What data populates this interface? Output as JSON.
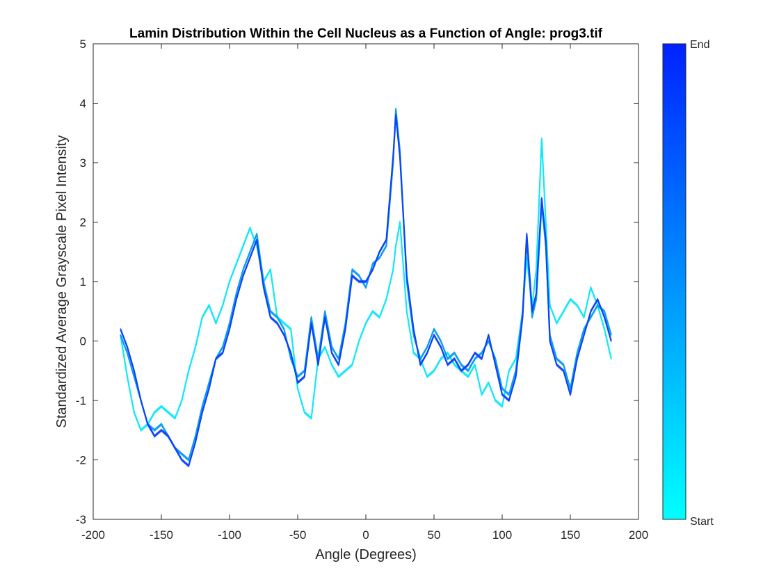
{
  "chart_data": {
    "type": "line",
    "title": "Lamin Distribution Within the Cell Nucleus as a Function of Angle: prog3.tif",
    "xlabel": "Angle (Degrees)",
    "ylabel": "Standardized Average Grayscale Pixel Intensity",
    "xlim": [
      -200,
      200
    ],
    "ylim": [
      -3,
      5
    ],
    "xticks": [
      -200,
      -150,
      -100,
      -50,
      0,
      50,
      100,
      150,
      200
    ],
    "yticks": [
      -3,
      -2,
      -1,
      0,
      1,
      2,
      3,
      4,
      5
    ],
    "xtick_labels": [
      "-200",
      "-150",
      "-100",
      "-50",
      "0",
      "50",
      "100",
      "150",
      "200"
    ],
    "ytick_labels": [
      "-3",
      "-2",
      "-1",
      "0",
      "1",
      "2",
      "3",
      "4",
      "5"
    ],
    "grid": false,
    "colorbar": {
      "labels": {
        "start": "Start",
        "end": "End"
      },
      "color_start": "#00FFFF",
      "color_end": "#0022FF"
    },
    "series": [
      {
        "color": "#10E8F8",
        "x": [
          -180,
          -175,
          -170,
          -165,
          -160,
          -155,
          -150,
          -145,
          -140,
          -135,
          -130,
          -125,
          -120,
          -115,
          -110,
          -105,
          -100,
          -95,
          -90,
          -85,
          -80,
          -75,
          -70,
          -65,
          -60,
          -55,
          -50,
          -45,
          -40,
          -35,
          -30,
          -25,
          -20,
          -15,
          -10,
          -5,
          0,
          5,
          10,
          15,
          20,
          22,
          25,
          30,
          35,
          40,
          45,
          50,
          55,
          60,
          65,
          70,
          75,
          80,
          85,
          90,
          95,
          100,
          105,
          110,
          115,
          118,
          122,
          125,
          129,
          132,
          135,
          140,
          145,
          150,
          155,
          160,
          165,
          170,
          175,
          180
        ],
        "y": [
          0.1,
          -0.6,
          -1.2,
          -1.5,
          -1.4,
          -1.2,
          -1.1,
          -1.2,
          -1.3,
          -1.0,
          -0.5,
          -0.1,
          0.4,
          0.6,
          0.3,
          0.6,
          1.0,
          1.3,
          1.6,
          1.9,
          1.6,
          1.0,
          1.2,
          0.4,
          0.3,
          0.2,
          -0.8,
          -1.2,
          -1.3,
          -0.3,
          -0.1,
          -0.4,
          -0.6,
          -0.5,
          -0.4,
          0.0,
          0.3,
          0.5,
          0.4,
          0.7,
          1.2,
          1.6,
          2.0,
          0.5,
          -0.2,
          -0.3,
          -0.6,
          -0.5,
          -0.3,
          -0.2,
          -0.4,
          -0.5,
          -0.6,
          -0.4,
          -0.9,
          -0.7,
          -1.0,
          -1.1,
          -0.5,
          -0.3,
          0.5,
          1.4,
          0.6,
          1.2,
          3.4,
          2.0,
          0.6,
          0.3,
          0.5,
          0.7,
          0.6,
          0.4,
          0.9,
          0.6,
          0.2,
          -0.3
        ]
      },
      {
        "color": "#0C9CF2",
        "x": [
          -180,
          -175,
          -170,
          -165,
          -160,
          -155,
          -150,
          -145,
          -140,
          -135,
          -130,
          -125,
          -120,
          -115,
          -110,
          -105,
          -100,
          -95,
          -90,
          -85,
          -80,
          -75,
          -70,
          -65,
          -60,
          -55,
          -50,
          -45,
          -40,
          -35,
          -30,
          -25,
          -20,
          -15,
          -10,
          -5,
          0,
          5,
          10,
          15,
          20,
          22,
          25,
          30,
          35,
          40,
          45,
          50,
          55,
          60,
          65,
          70,
          75,
          80,
          85,
          90,
          95,
          100,
          105,
          110,
          115,
          118,
          122,
          125,
          129,
          132,
          135,
          140,
          145,
          150,
          155,
          160,
          165,
          170,
          175,
          180
        ],
        "y": [
          0.1,
          -0.2,
          -0.6,
          -1.0,
          -1.4,
          -1.5,
          -1.4,
          -1.6,
          -1.8,
          -1.9,
          -2.0,
          -1.6,
          -1.1,
          -0.7,
          -0.3,
          -0.1,
          0.3,
          0.8,
          1.2,
          1.5,
          1.8,
          1.0,
          0.5,
          0.4,
          0.2,
          -0.3,
          -0.6,
          -0.5,
          0.4,
          -0.3,
          0.5,
          -0.1,
          -0.3,
          0.3,
          1.2,
          1.1,
          0.9,
          1.3,
          1.4,
          1.6,
          3.0,
          3.9,
          3.2,
          1.0,
          0.1,
          -0.3,
          -0.1,
          0.2,
          0.0,
          -0.3,
          -0.2,
          -0.4,
          -0.5,
          -0.3,
          -0.2,
          0.0,
          -0.3,
          -0.8,
          -0.9,
          -0.5,
          0.5,
          1.7,
          0.4,
          0.7,
          2.3,
          1.6,
          0.1,
          -0.3,
          -0.4,
          -0.8,
          -0.2,
          0.2,
          0.4,
          0.6,
          0.5,
          0.1
        ]
      },
      {
        "color": "#0B44F7",
        "x": [
          -180,
          -175,
          -170,
          -165,
          -160,
          -155,
          -150,
          -145,
          -140,
          -135,
          -130,
          -125,
          -120,
          -115,
          -110,
          -105,
          -100,
          -95,
          -90,
          -85,
          -80,
          -75,
          -70,
          -65,
          -60,
          -55,
          -50,
          -45,
          -40,
          -35,
          -30,
          -25,
          -20,
          -15,
          -10,
          -5,
          0,
          5,
          10,
          15,
          20,
          22,
          25,
          30,
          35,
          40,
          45,
          50,
          55,
          60,
          65,
          70,
          75,
          80,
          85,
          90,
          95,
          100,
          105,
          110,
          115,
          118,
          122,
          125,
          129,
          132,
          135,
          140,
          145,
          150,
          155,
          160,
          165,
          170,
          175,
          180
        ],
        "y": [
          0.2,
          -0.1,
          -0.5,
          -1.0,
          -1.4,
          -1.6,
          -1.5,
          -1.6,
          -1.8,
          -2.0,
          -2.1,
          -1.7,
          -1.2,
          -0.8,
          -0.3,
          -0.2,
          0.2,
          0.7,
          1.1,
          1.4,
          1.7,
          0.9,
          0.4,
          0.3,
          0.1,
          -0.2,
          -0.7,
          -0.6,
          0.3,
          -0.4,
          0.4,
          -0.2,
          -0.4,
          0.2,
          1.1,
          1.0,
          1.0,
          1.2,
          1.5,
          1.7,
          3.1,
          3.8,
          3.1,
          1.1,
          0.2,
          -0.4,
          -0.2,
          0.1,
          -0.1,
          -0.4,
          -0.3,
          -0.5,
          -0.4,
          -0.2,
          -0.3,
          0.1,
          -0.4,
          -0.9,
          -1.0,
          -0.6,
          0.4,
          1.8,
          0.5,
          0.8,
          2.4,
          1.7,
          0.0,
          -0.4,
          -0.5,
          -0.9,
          -0.3,
          0.1,
          0.5,
          0.7,
          0.4,
          0.0
        ]
      }
    ]
  }
}
